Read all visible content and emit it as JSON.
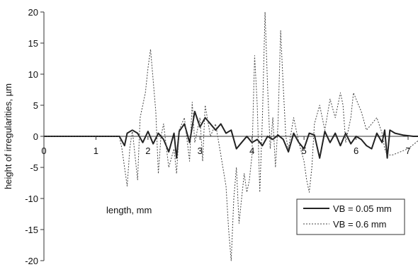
{
  "chart_data": {
    "type": "line",
    "title": "",
    "xlabel": "length, mm",
    "ylabel": "height of irregularities, µm",
    "xlim": [
      0,
      7
    ],
    "ylim": [
      -20,
      20
    ],
    "x_ticks": [
      "0",
      "1",
      "2",
      "3",
      "4",
      "5",
      "6",
      "7"
    ],
    "y_ticks": [
      "20",
      "15",
      "10",
      "5",
      "0",
      "-5",
      "-10",
      "-15",
      "-20"
    ],
    "grid": false,
    "legend_position": "bottom-right",
    "series": [
      {
        "name": "VB = 0.05 mm",
        "style": "solid",
        "color": "#222222",
        "points": [
          [
            0.0,
            0.0
          ],
          [
            0.5,
            0.0
          ],
          [
            1.0,
            0.0
          ],
          [
            1.45,
            0.0
          ],
          [
            1.55,
            -1.5
          ],
          [
            1.6,
            0.5
          ],
          [
            1.7,
            1.0
          ],
          [
            1.8,
            0.5
          ],
          [
            1.9,
            -1.0
          ],
          [
            2.0,
            0.8
          ],
          [
            2.1,
            -1.2
          ],
          [
            2.2,
            0.5
          ],
          [
            2.3,
            -0.5
          ],
          [
            2.4,
            -2.5
          ],
          [
            2.5,
            0.5
          ],
          [
            2.55,
            -3.5
          ],
          [
            2.6,
            0.8
          ],
          [
            2.7,
            2.0
          ],
          [
            2.8,
            -1.0
          ],
          [
            2.9,
            4.0
          ],
          [
            3.0,
            1.5
          ],
          [
            3.1,
            3.0
          ],
          [
            3.2,
            2.0
          ],
          [
            3.3,
            1.0
          ],
          [
            3.4,
            2.0
          ],
          [
            3.5,
            0.5
          ],
          [
            3.6,
            1.0
          ],
          [
            3.7,
            -2.0
          ],
          [
            3.8,
            -1.0
          ],
          [
            3.9,
            0.0
          ],
          [
            4.0,
            -1.0
          ],
          [
            4.1,
            -0.5
          ],
          [
            4.2,
            -1.5
          ],
          [
            4.3,
            0.0
          ],
          [
            4.4,
            -0.5
          ],
          [
            4.5,
            0.2
          ],
          [
            4.6,
            -0.5
          ],
          [
            4.7,
            -2.5
          ],
          [
            4.8,
            0.5
          ],
          [
            4.9,
            -1.0
          ],
          [
            5.0,
            -2.0
          ],
          [
            5.1,
            0.5
          ],
          [
            5.2,
            0.2
          ],
          [
            5.3,
            -3.5
          ],
          [
            5.4,
            0.8
          ],
          [
            5.5,
            -1.0
          ],
          [
            5.6,
            0.5
          ],
          [
            5.7,
            -1.5
          ],
          [
            5.8,
            0.5
          ],
          [
            5.9,
            -1.2
          ],
          [
            6.0,
            0.0
          ],
          [
            6.1,
            -0.5
          ],
          [
            6.2,
            -1.5
          ],
          [
            6.3,
            -2.0
          ],
          [
            6.4,
            0.5
          ],
          [
            6.5,
            -1.0
          ],
          [
            6.55,
            1.0
          ],
          [
            6.6,
            -3.5
          ],
          [
            6.65,
            1.0
          ],
          [
            6.75,
            0.5
          ],
          [
            6.9,
            0.2
          ],
          [
            7.1,
            0.0
          ],
          [
            7.3,
            0.0
          ]
        ]
      },
      {
        "name": "VB = 0.6 mm",
        "style": "dotted",
        "color": "#444444",
        "points": [
          [
            0.0,
            0.0
          ],
          [
            1.0,
            0.0
          ],
          [
            1.45,
            0.0
          ],
          [
            1.5,
            -2.0
          ],
          [
            1.55,
            -5.0
          ],
          [
            1.6,
            -8.0
          ],
          [
            1.65,
            -2.0
          ],
          [
            1.7,
            1.0
          ],
          [
            1.75,
            -3.0
          ],
          [
            1.8,
            -7.0
          ],
          [
            1.85,
            3.0
          ],
          [
            1.9,
            5.0
          ],
          [
            1.95,
            7.0
          ],
          [
            2.0,
            11.0
          ],
          [
            2.05,
            14.0
          ],
          [
            2.1,
            9.0
          ],
          [
            2.15,
            4.0
          ],
          [
            2.2,
            -6.0
          ],
          [
            2.25,
            0.0
          ],
          [
            2.3,
            2.0
          ],
          [
            2.4,
            -5.0
          ],
          [
            2.5,
            -2.0
          ],
          [
            2.55,
            -6.0
          ],
          [
            2.6,
            1.0
          ],
          [
            2.7,
            3.0
          ],
          [
            2.8,
            -4.0
          ],
          [
            2.85,
            5.5
          ],
          [
            2.9,
            -1.0
          ],
          [
            3.0,
            3.0
          ],
          [
            3.05,
            -4.0
          ],
          [
            3.1,
            5.0
          ],
          [
            3.2,
            0.0
          ],
          [
            3.3,
            2.0
          ],
          [
            3.4,
            -3.0
          ],
          [
            3.5,
            -8.0
          ],
          [
            3.55,
            -15.0
          ],
          [
            3.6,
            -20.0
          ],
          [
            3.65,
            -10.0
          ],
          [
            3.7,
            -5.0
          ],
          [
            3.75,
            -14.0
          ],
          [
            3.8,
            -10.0
          ],
          [
            3.85,
            -6.0
          ],
          [
            3.9,
            -9.0
          ],
          [
            3.95,
            -7.0
          ],
          [
            4.0,
            -3.0
          ],
          [
            4.05,
            13.0
          ],
          [
            4.1,
            5.0
          ],
          [
            4.15,
            -9.0
          ],
          [
            4.2,
            3.0
          ],
          [
            4.25,
            20.0
          ],
          [
            4.3,
            8.0
          ],
          [
            4.35,
            -2.0
          ],
          [
            4.4,
            3.0
          ],
          [
            4.45,
            -5.0
          ],
          [
            4.5,
            2.0
          ],
          [
            4.55,
            17.0
          ],
          [
            4.6,
            8.0
          ],
          [
            4.65,
            0.0
          ],
          [
            4.7,
            -2.0
          ],
          [
            4.8,
            3.0
          ],
          [
            4.9,
            -1.0
          ],
          [
            5.0,
            -4.0
          ],
          [
            5.05,
            -7.0
          ],
          [
            5.1,
            -9.0
          ],
          [
            5.15,
            -5.0
          ],
          [
            5.2,
            2.0
          ],
          [
            5.3,
            5.0
          ],
          [
            5.4,
            1.0
          ],
          [
            5.5,
            6.0
          ],
          [
            5.6,
            3.0
          ],
          [
            5.7,
            7.0
          ],
          [
            5.75,
            5.0
          ],
          [
            5.8,
            -1.0
          ],
          [
            5.9,
            3.0
          ],
          [
            5.95,
            7.0
          ],
          [
            6.0,
            6.0
          ],
          [
            6.1,
            4.0
          ],
          [
            6.2,
            1.0
          ],
          [
            6.3,
            2.0
          ],
          [
            6.4,
            3.0
          ],
          [
            6.5,
            0.5
          ],
          [
            6.55,
            -2.0
          ],
          [
            6.6,
            -3.0
          ],
          [
            6.7,
            -3.0
          ],
          [
            6.85,
            -2.5
          ],
          [
            7.0,
            -2.0
          ],
          [
            7.15,
            -1.0
          ],
          [
            7.3,
            0.0
          ]
        ]
      }
    ]
  }
}
